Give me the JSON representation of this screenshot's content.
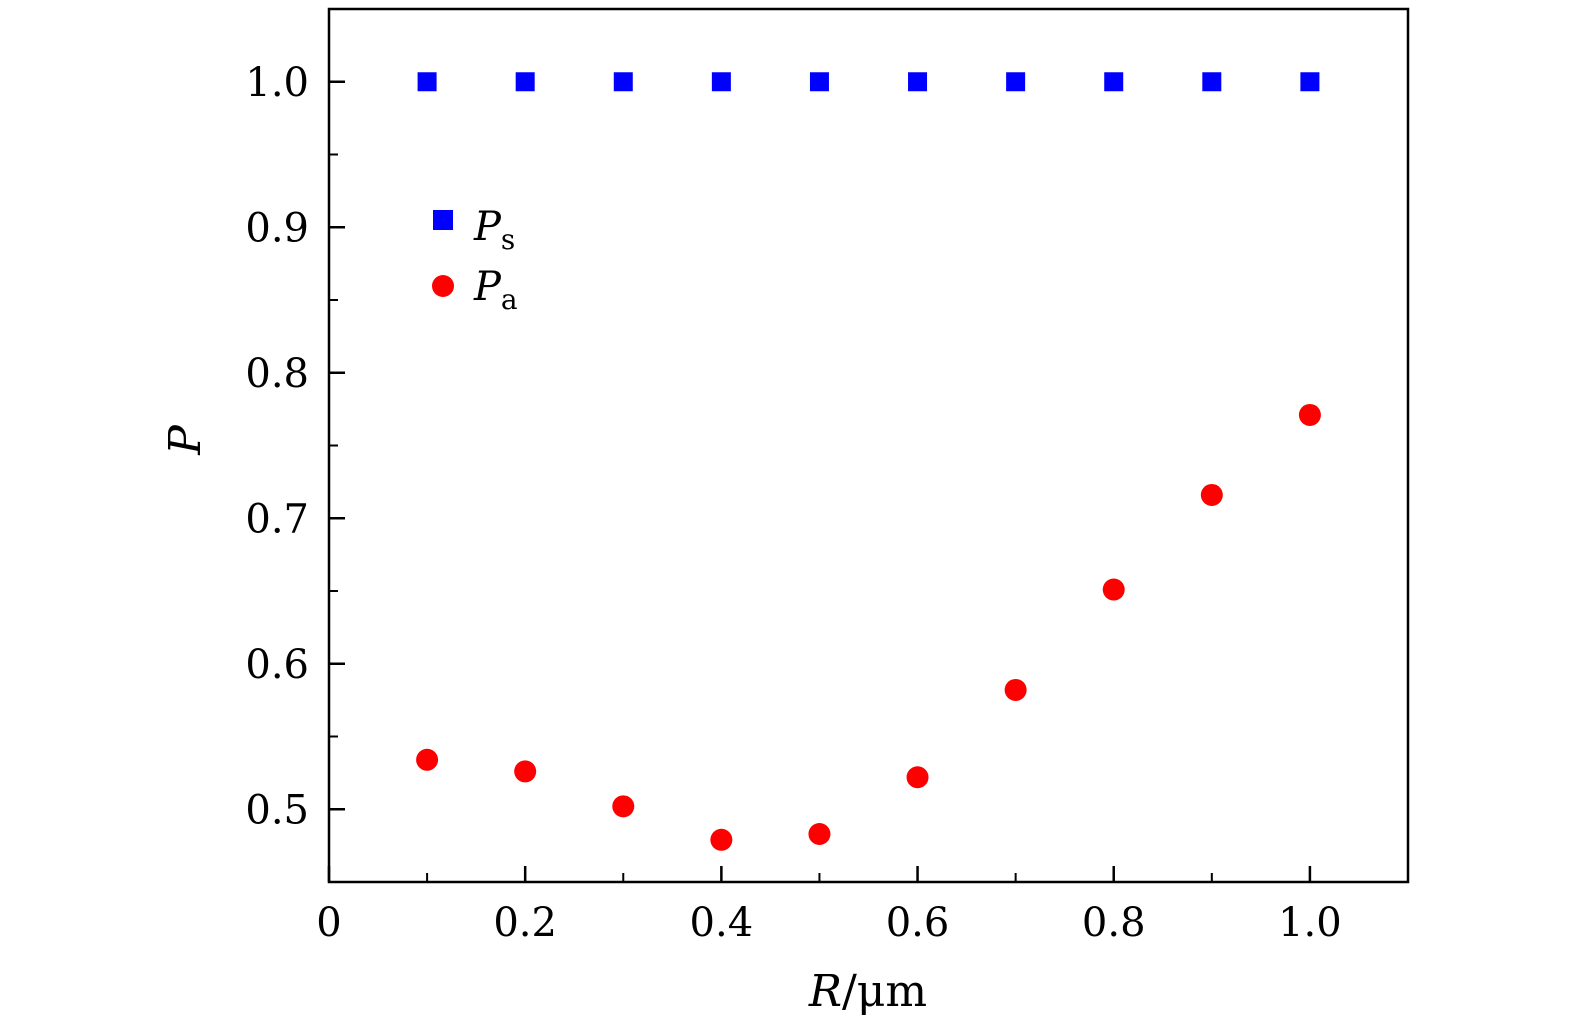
{
  "chart_data": {
    "type": "scatter",
    "title": "",
    "xlabel": {
      "symbol": "R",
      "unit": "/μm"
    },
    "ylabel": "P",
    "xlim": [
      0,
      1.1
    ],
    "ylim": [
      0.45,
      1.05
    ],
    "x_ticks": [
      0,
      0.2,
      0.4,
      0.6,
      0.8,
      1.0
    ],
    "x_tick_labels": [
      "0",
      "0.2",
      "0.4",
      "0.6",
      "0.8",
      "1.0"
    ],
    "x_minor_ticks": [
      0.1,
      0.3,
      0.5,
      0.7,
      0.9
    ],
    "y_ticks": [
      0.5,
      0.6,
      0.7,
      0.8,
      0.9,
      1.0
    ],
    "y_tick_labels": [
      "0.5",
      "0.6",
      "0.7",
      "0.8",
      "0.9",
      "1.0"
    ],
    "y_minor_ticks": [
      0.55,
      0.65,
      0.75,
      0.85,
      0.95
    ],
    "grid": false,
    "legend_position": "upper-left",
    "series": [
      {
        "name": "P",
        "subscript": "s",
        "marker": "square",
        "color": "#0000ff",
        "x": [
          0.1,
          0.2,
          0.3,
          0.4,
          0.5,
          0.6,
          0.7,
          0.8,
          0.9,
          1.0
        ],
        "y": [
          1.0,
          1.0,
          1.0,
          1.0,
          1.0,
          1.0,
          1.0,
          1.0,
          1.0,
          1.0
        ]
      },
      {
        "name": "P",
        "subscript": "a",
        "marker": "circle",
        "color": "#ff0000",
        "x": [
          0.1,
          0.2,
          0.3,
          0.4,
          0.5,
          0.6,
          0.7,
          0.8,
          0.9,
          1.0
        ],
        "y": [
          0.534,
          0.526,
          0.502,
          0.479,
          0.483,
          0.522,
          0.582,
          0.651,
          0.716,
          0.771
        ]
      }
    ]
  }
}
